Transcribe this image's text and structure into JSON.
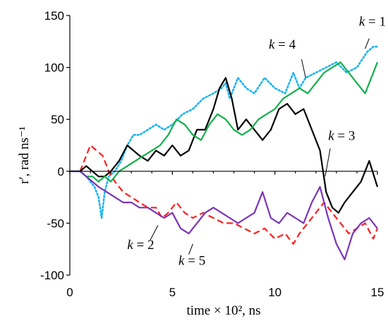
{
  "chart_data": {
    "type": "line",
    "title": "",
    "xlabel": "time × 10², ns",
    "ylabel": "r′,  rad ns⁻¹",
    "xlim": [
      0,
      15
    ],
    "ylim": [
      -100,
      150
    ],
    "xticks": [
      "0",
      "5",
      "10",
      "15"
    ],
    "yticks": [
      "-100",
      "-50",
      "0",
      "50",
      "100",
      "150"
    ],
    "grid": false,
    "legend": "none",
    "series": [
      {
        "name": "k = 1",
        "color": "#1ab4f0",
        "style": "dotted",
        "points": [
          [
            0,
            0
          ],
          [
            0.5,
            0
          ],
          [
            0.8,
            -5
          ],
          [
            1.0,
            -10
          ],
          [
            1.2,
            -15
          ],
          [
            1.4,
            -25
          ],
          [
            1.55,
            -45
          ],
          [
            1.7,
            -20
          ],
          [
            1.9,
            -5
          ],
          [
            2.2,
            0
          ],
          [
            2.5,
            10
          ],
          [
            2.8,
            25
          ],
          [
            3.1,
            35
          ],
          [
            3.4,
            35
          ],
          [
            3.8,
            40
          ],
          [
            4.2,
            45
          ],
          [
            4.6,
            40
          ],
          [
            5.0,
            45
          ],
          [
            5.5,
            55
          ],
          [
            6.0,
            60
          ],
          [
            6.5,
            70
          ],
          [
            7.0,
            75
          ],
          [
            7.4,
            80
          ],
          [
            7.6,
            85
          ],
          [
            7.8,
            70
          ],
          [
            8.2,
            90
          ],
          [
            8.6,
            80
          ],
          [
            9.0,
            75
          ],
          [
            9.5,
            90
          ],
          [
            10.0,
            80
          ],
          [
            10.5,
            75
          ],
          [
            10.9,
            95
          ],
          [
            11.2,
            80
          ],
          [
            11.5,
            90
          ],
          [
            12.0,
            95
          ],
          [
            12.5,
            100
          ],
          [
            13.0,
            105
          ],
          [
            13.5,
            95
          ],
          [
            14.0,
            100
          ],
          [
            14.5,
            115
          ],
          [
            14.8,
            120
          ],
          [
            15.0,
            120
          ]
        ]
      },
      {
        "name": "k = 2",
        "color": "#ff1f1f",
        "style": "dashed",
        "points": [
          [
            0,
            0
          ],
          [
            0.5,
            0
          ],
          [
            0.8,
            15
          ],
          [
            1.0,
            25
          ],
          [
            1.3,
            20
          ],
          [
            1.6,
            15
          ],
          [
            1.9,
            0
          ],
          [
            2.2,
            -10
          ],
          [
            2.6,
            -20
          ],
          [
            3.0,
            -25
          ],
          [
            3.4,
            -30
          ],
          [
            3.8,
            -35
          ],
          [
            4.2,
            -35
          ],
          [
            4.5,
            -45
          ],
          [
            4.8,
            -40
          ],
          [
            5.2,
            -30
          ],
          [
            5.6,
            -40
          ],
          [
            6.0,
            -45
          ],
          [
            6.5,
            -40
          ],
          [
            7.0,
            -45
          ],
          [
            7.5,
            -50
          ],
          [
            8.0,
            -50
          ],
          [
            8.5,
            -55
          ],
          [
            9.0,
            -60
          ],
          [
            9.5,
            -55
          ],
          [
            10.0,
            -65
          ],
          [
            10.5,
            -60
          ],
          [
            10.9,
            -70
          ],
          [
            11.2,
            -60
          ],
          [
            11.6,
            -50
          ],
          [
            12.0,
            -40
          ],
          [
            12.4,
            -30
          ],
          [
            12.8,
            -40
          ],
          [
            13.2,
            -50
          ],
          [
            13.6,
            -60
          ],
          [
            14.0,
            -55
          ],
          [
            14.4,
            -50
          ],
          [
            14.8,
            -65
          ],
          [
            15.0,
            -55
          ]
        ]
      },
      {
        "name": "k = 3",
        "color": "#000000",
        "style": "solid",
        "points": [
          [
            0,
            0
          ],
          [
            0.5,
            0
          ],
          [
            0.8,
            5
          ],
          [
            1.1,
            0
          ],
          [
            1.4,
            -5
          ],
          [
            1.7,
            -5
          ],
          [
            2.0,
            0
          ],
          [
            2.4,
            10
          ],
          [
            2.8,
            25
          ],
          [
            3.1,
            20
          ],
          [
            3.4,
            15
          ],
          [
            3.8,
            10
          ],
          [
            4.2,
            20
          ],
          [
            4.6,
            15
          ],
          [
            5.0,
            25
          ],
          [
            5.4,
            15
          ],
          [
            5.8,
            20
          ],
          [
            6.2,
            40
          ],
          [
            6.6,
            40
          ],
          [
            7.0,
            60
          ],
          [
            7.3,
            80
          ],
          [
            7.6,
            90
          ],
          [
            7.9,
            70
          ],
          [
            8.2,
            40
          ],
          [
            8.6,
            50
          ],
          [
            9.0,
            40
          ],
          [
            9.4,
            30
          ],
          [
            9.8,
            40
          ],
          [
            10.2,
            60
          ],
          [
            10.6,
            65
          ],
          [
            11.0,
            55
          ],
          [
            11.4,
            60
          ],
          [
            11.8,
            40
          ],
          [
            12.2,
            20
          ],
          [
            12.5,
            -20
          ],
          [
            12.8,
            -35
          ],
          [
            13.1,
            -40
          ],
          [
            13.4,
            -30
          ],
          [
            13.8,
            -20
          ],
          [
            14.2,
            -10
          ],
          [
            14.6,
            10
          ],
          [
            15.0,
            -15
          ]
        ]
      },
      {
        "name": "k = 4",
        "color": "#12b04b",
        "style": "solid",
        "points": [
          [
            0,
            0
          ],
          [
            0.5,
            0
          ],
          [
            0.8,
            -5
          ],
          [
            1.1,
            -5
          ],
          [
            1.4,
            -10
          ],
          [
            1.7,
            -5
          ],
          [
            2.0,
            -10
          ],
          [
            2.4,
            0
          ],
          [
            2.8,
            5
          ],
          [
            3.2,
            10
          ],
          [
            3.6,
            15
          ],
          [
            4.0,
            20
          ],
          [
            4.4,
            25
          ],
          [
            4.8,
            35
          ],
          [
            5.2,
            50
          ],
          [
            5.6,
            45
          ],
          [
            6.0,
            35
          ],
          [
            6.4,
            30
          ],
          [
            6.8,
            45
          ],
          [
            7.2,
            55
          ],
          [
            7.6,
            50
          ],
          [
            8.0,
            40
          ],
          [
            8.4,
            35
          ],
          [
            8.8,
            40
          ],
          [
            9.2,
            50
          ],
          [
            9.6,
            55
          ],
          [
            10.0,
            60
          ],
          [
            10.4,
            70
          ],
          [
            10.8,
            75
          ],
          [
            11.2,
            80
          ],
          [
            11.6,
            75
          ],
          [
            12.0,
            85
          ],
          [
            12.4,
            95
          ],
          [
            12.8,
            100
          ],
          [
            13.2,
            105
          ],
          [
            13.6,
            95
          ],
          [
            14.0,
            85
          ],
          [
            14.4,
            75
          ],
          [
            14.8,
            95
          ],
          [
            15.0,
            105
          ]
        ]
      },
      {
        "name": "k = 5",
        "color": "#7a34b8",
        "style": "solid",
        "points": [
          [
            0,
            0
          ],
          [
            0.5,
            0
          ],
          [
            0.8,
            -5
          ],
          [
            1.1,
            -10
          ],
          [
            1.4,
            -15
          ],
          [
            1.8,
            -20
          ],
          [
            2.2,
            -25
          ],
          [
            2.6,
            -30
          ],
          [
            3.0,
            -30
          ],
          [
            3.4,
            -35
          ],
          [
            3.8,
            -35
          ],
          [
            4.2,
            -40
          ],
          [
            4.6,
            -45
          ],
          [
            5.0,
            -40
          ],
          [
            5.4,
            -55
          ],
          [
            5.8,
            -60
          ],
          [
            6.2,
            -50
          ],
          [
            6.6,
            -40
          ],
          [
            7.0,
            -35
          ],
          [
            7.4,
            -40
          ],
          [
            7.8,
            -45
          ],
          [
            8.2,
            -50
          ],
          [
            8.6,
            -45
          ],
          [
            9.0,
            -40
          ],
          [
            9.4,
            -20
          ],
          [
            9.8,
            -45
          ],
          [
            10.2,
            -50
          ],
          [
            10.6,
            -40
          ],
          [
            11.0,
            -45
          ],
          [
            11.4,
            -50
          ],
          [
            11.8,
            -30
          ],
          [
            12.2,
            -15
          ],
          [
            12.6,
            -45
          ],
          [
            13.0,
            -70
          ],
          [
            13.4,
            -85
          ],
          [
            13.8,
            -60
          ],
          [
            14.2,
            -50
          ],
          [
            14.6,
            -45
          ],
          [
            15.0,
            -55
          ]
        ]
      }
    ],
    "annotations": [
      {
        "text": "k = 1",
        "series": 0
      },
      {
        "text": "k = 2",
        "series": 1
      },
      {
        "text": "k = 3",
        "series": 2
      },
      {
        "text": "k = 4",
        "series": 3
      },
      {
        "text": "k = 5",
        "series": 4
      }
    ]
  }
}
